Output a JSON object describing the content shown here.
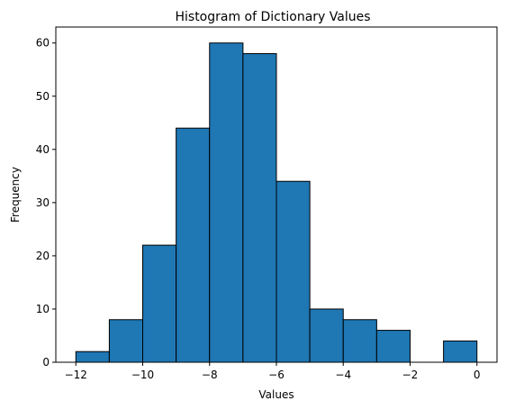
{
  "chart_data": {
    "type": "bar",
    "subtype": "histogram",
    "title": "Histogram of Dictionary Values",
    "xlabel": "Values",
    "ylabel": "Frequency",
    "bins": [
      {
        "x0": -12,
        "x1": -11,
        "count": 2
      },
      {
        "x0": -11,
        "x1": -10,
        "count": 8
      },
      {
        "x0": -10,
        "x1": -9,
        "count": 22
      },
      {
        "x0": -9,
        "x1": -8,
        "count": 44
      },
      {
        "x0": -8,
        "x1": -7,
        "count": 60
      },
      {
        "x0": -7,
        "x1": -6,
        "count": 58
      },
      {
        "x0": -6,
        "x1": -5,
        "count": 34
      },
      {
        "x0": -5,
        "x1": -4,
        "count": 10
      },
      {
        "x0": -4,
        "x1": -3,
        "count": 8
      },
      {
        "x0": -3,
        "x1": -2,
        "count": 6
      },
      {
        "x0": -2,
        "x1": -1,
        "count": 0
      },
      {
        "x0": -1,
        "x1": 0,
        "count": 4
      }
    ],
    "xlim": [
      -12.6,
      0.6
    ],
    "ylim": [
      0,
      63
    ],
    "xticks": [
      -12,
      -10,
      -8,
      -6,
      -4,
      -2,
      0
    ],
    "xtick_labels": [
      "−12",
      "−10",
      "−8",
      "−6",
      "−4",
      "−2",
      "0"
    ],
    "yticks": [
      0,
      10,
      20,
      30,
      40,
      50,
      60
    ],
    "ytick_labels": [
      "0",
      "10",
      "20",
      "30",
      "40",
      "50",
      "60"
    ],
    "grid": false,
    "bar_color": "#1f77b4",
    "edge_color": "#000000"
  }
}
